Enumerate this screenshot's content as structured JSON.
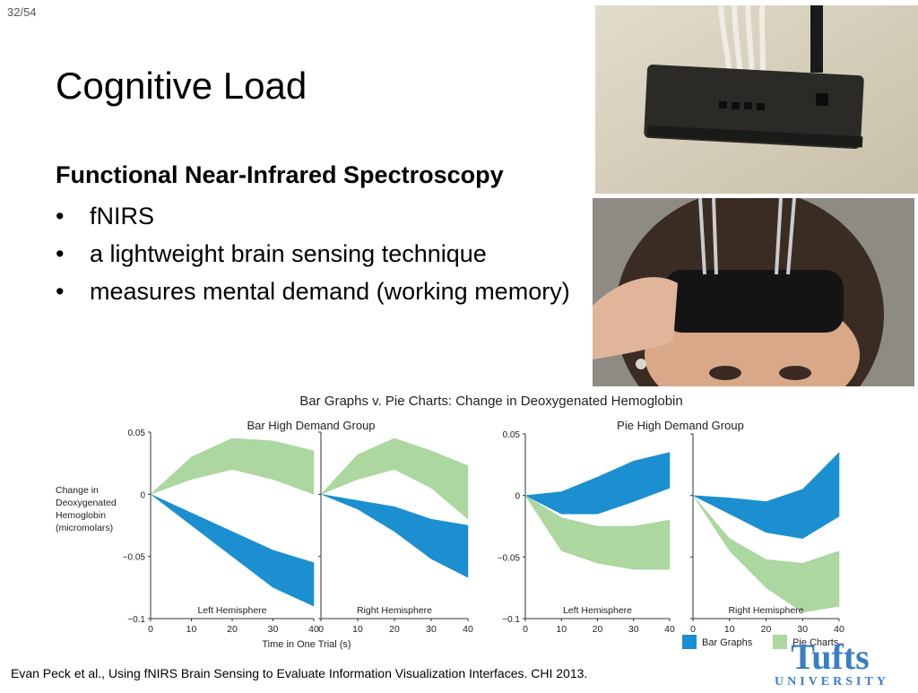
{
  "slide": {
    "number": "32/54",
    "title": "Cognitive Load",
    "subtitle": "Functional Near-Infrared Spectroscopy",
    "bullets": [
      "fNIRS",
      "a lightweight brain sensing technique",
      "measures mental demand (working memory)"
    ],
    "bullet_symbol": "•",
    "citation": "Evan Peck et al., Using fNIRS Brain Sensing to Evaluate Information Visualization Interfaces. CHI 2013.",
    "logo_text_top": "Tufts",
    "logo_text_bottom": "UNIVERSITY"
  },
  "chart_data": {
    "type": "area",
    "title": "Bar Graphs v. Pie Charts: Change in Deoxygenated Hemoglobin",
    "ylabel": "Change in Deoxygenated Hemoglobin (micromolars)",
    "xlabel": "Time in One Trial (s)",
    "ylim": [
      -0.1,
      0.05
    ],
    "xlim": [
      0,
      40
    ],
    "yticks": [
      "0.05",
      "0",
      "−0.05",
      "−0.1"
    ],
    "xticks": [
      "0",
      "10",
      "20",
      "30",
      "40"
    ],
    "legend": [
      {
        "name": "Bar Graphs",
        "color": "#1b8fcf"
      },
      {
        "name": "Pie Charts",
        "color": "#acd7a0"
      }
    ],
    "legend_placement": "bottom-right",
    "groups": [
      {
        "name": "Bar High Demand Group",
        "panels": [
          {
            "label": "Left Hemisphere",
            "x": [
              0,
              10,
              20,
              30,
              40
            ],
            "series": [
              {
                "name": "Bar Graphs",
                "upper": [
                  0,
                  -0.015,
                  -0.03,
                  -0.045,
                  -0.055
                ],
                "lower": [
                  0,
                  -0.025,
                  -0.05,
                  -0.075,
                  -0.09
                ]
              },
              {
                "name": "Pie Charts",
                "upper": [
                  0,
                  0.03,
                  0.045,
                  0.043,
                  0.035
                ],
                "lower": [
                  0,
                  0.012,
                  0.02,
                  0.012,
                  0
                ]
              }
            ]
          },
          {
            "label": "Right Hemisphere",
            "x": [
              0,
              10,
              20,
              30,
              40
            ],
            "series": [
              {
                "name": "Bar Graphs",
                "upper": [
                  0,
                  -0.005,
                  -0.01,
                  -0.02,
                  -0.025
                ],
                "lower": [
                  0,
                  -0.012,
                  -0.03,
                  -0.052,
                  -0.067
                ]
              },
              {
                "name": "Pie Charts",
                "upper": [
                  0,
                  0.032,
                  0.045,
                  0.035,
                  0.023
                ],
                "lower": [
                  0,
                  0.012,
                  0.02,
                  0.005,
                  -0.02
                ]
              }
            ]
          }
        ]
      },
      {
        "name": "Pie High Demand Group",
        "panels": [
          {
            "label": "Left Hemisphere",
            "x": [
              0,
              10,
              20,
              30,
              40
            ],
            "series": [
              {
                "name": "Bar Graphs",
                "upper": [
                  0,
                  0.003,
                  0.015,
                  0.028,
                  0.035
                ],
                "lower": [
                  0,
                  -0.015,
                  -0.015,
                  -0.005,
                  0.006
                ]
              },
              {
                "name": "Pie Charts",
                "upper": [
                  0,
                  -0.018,
                  -0.025,
                  -0.025,
                  -0.02
                ],
                "lower": [
                  0,
                  -0.045,
                  -0.055,
                  -0.06,
                  -0.06
                ]
              }
            ]
          },
          {
            "label": "Right Hemisphere",
            "x": [
              0,
              10,
              20,
              30,
              40
            ],
            "series": [
              {
                "name": "Bar Graphs",
                "upper": [
                  0,
                  -0.002,
                  -0.005,
                  0.005,
                  0.035
                ],
                "lower": [
                  0,
                  -0.015,
                  -0.03,
                  -0.035,
                  -0.017
                ]
              },
              {
                "name": "Pie Charts",
                "upper": [
                  0,
                  -0.035,
                  -0.052,
                  -0.055,
                  -0.045
                ],
                "lower": [
                  0,
                  -0.045,
                  -0.075,
                  -0.095,
                  -0.09
                ]
              }
            ]
          }
        ]
      }
    ]
  }
}
